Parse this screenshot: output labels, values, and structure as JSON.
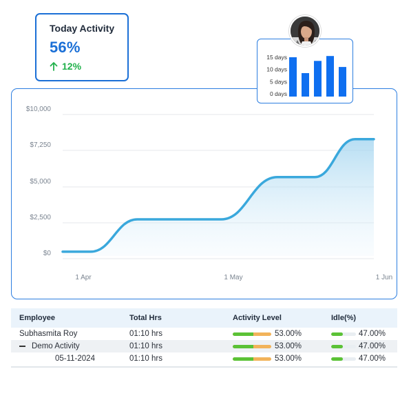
{
  "activity_card": {
    "title": "Today Activity",
    "value": "56%",
    "change": "12%",
    "accent": "#1a6fd6",
    "change_color": "#22b14c"
  },
  "mini_chart": {
    "type": "bar",
    "y_ticks": [
      "15 days",
      "10 days",
      "5 days",
      "0 days"
    ],
    "values": [
      15,
      8.5,
      13.5,
      15.5,
      11
    ],
    "ylim": [
      0,
      15
    ],
    "bar_color": "#0f6ff0"
  },
  "chart_data": {
    "type": "area",
    "y_ticks": [
      "$10,000",
      "$7,250",
      "$5,000",
      "$2,500",
      "$0"
    ],
    "x_ticks": [
      "1 Apr",
      "1 May",
      "1 Jun"
    ],
    "ylim": [
      0,
      10000
    ],
    "line_color": "#3aa8dc",
    "points": [
      {
        "x": 0,
        "y": 200
      },
      {
        "x": 0.09,
        "y": 200
      },
      {
        "x": 0.24,
        "y": 2500
      },
      {
        "x": 0.51,
        "y": 2500
      },
      {
        "x": 0.69,
        "y": 5500
      },
      {
        "x": 0.81,
        "y": 5500
      },
      {
        "x": 0.94,
        "y": 8200
      },
      {
        "x": 1.0,
        "y": 8200
      }
    ]
  },
  "table": {
    "headers": [
      "Employee",
      "Total Hrs",
      "Activity Level",
      "Idle(%)"
    ],
    "rows": [
      {
        "employee": "Subhasmita Roy",
        "total": "01:10 hrs",
        "activity": "53.00%",
        "activity_value": 0.53,
        "idle": "47.00%",
        "idle_value": 0.47
      },
      {
        "employee": "Demo Activity",
        "total": "01:10 hrs",
        "activity": "53.00%",
        "activity_value": 0.53,
        "idle": "47.00%",
        "idle_value": 0.47
      },
      {
        "employee": "05-11-2024",
        "total": "01:10 hrs",
        "activity": "53.00%",
        "activity_value": 0.53,
        "idle": "47.00%",
        "idle_value": 0.47
      }
    ]
  }
}
